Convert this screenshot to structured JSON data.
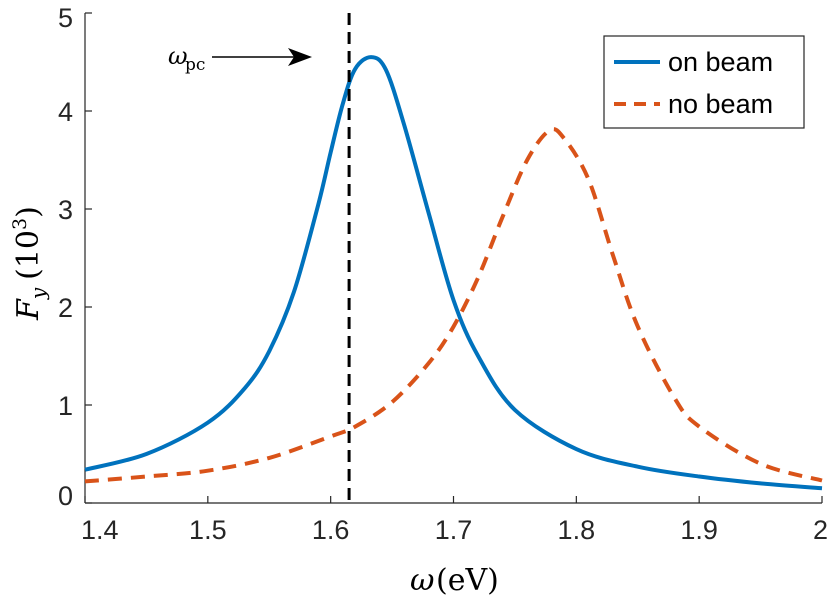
{
  "chart_data": {
    "type": "line",
    "title": "",
    "xlabel": {
      "symbol": "ω",
      "unit": "(eV)"
    },
    "ylabel": {
      "symbol": "F",
      "subscript": "y",
      "base": "(10",
      "exponent": "3",
      "close": ")"
    },
    "xlim": [
      1.4,
      2.0
    ],
    "ylim": [
      0,
      5
    ],
    "xticks": [
      "1.4",
      "1.5",
      "1.6",
      "1.7",
      "1.8",
      "1.9",
      "2"
    ],
    "xtick_values": [
      1.4,
      1.5,
      1.6,
      1.7,
      1.8,
      1.9,
      2.0
    ],
    "yticks": [
      "0",
      "1",
      "2",
      "3",
      "4",
      "5"
    ],
    "ytick_values": [
      0,
      1,
      2,
      3,
      4,
      5
    ],
    "legend_position": "top-right",
    "series": [
      {
        "name": "on beam",
        "style": "solid",
        "color": "#0072BD",
        "x": [
          1.4,
          1.45,
          1.5,
          1.53,
          1.55,
          1.57,
          1.59,
          1.6,
          1.61,
          1.62,
          1.633,
          1.645,
          1.66,
          1.68,
          1.7,
          1.72,
          1.75,
          1.8,
          1.85,
          1.9,
          1.95,
          2.0
        ],
        "y": [
          0.34,
          0.5,
          0.82,
          1.17,
          1.55,
          2.15,
          3.05,
          3.58,
          4.08,
          4.43,
          4.55,
          4.42,
          3.85,
          2.95,
          2.07,
          1.5,
          0.95,
          0.55,
          0.37,
          0.27,
          0.2,
          0.15
        ]
      },
      {
        "name": "no beam",
        "style": "dashed",
        "color": "#D95319",
        "x": [
          1.4,
          1.45,
          1.5,
          1.55,
          1.6,
          1.62,
          1.65,
          1.68,
          1.7,
          1.72,
          1.74,
          1.76,
          1.778,
          1.79,
          1.81,
          1.83,
          1.85,
          1.88,
          1.9,
          1.95,
          2.0
        ],
        "y": [
          0.22,
          0.27,
          0.33,
          0.46,
          0.68,
          0.78,
          1.03,
          1.43,
          1.8,
          2.3,
          2.92,
          3.5,
          3.8,
          3.72,
          3.3,
          2.52,
          1.8,
          1.07,
          0.78,
          0.4,
          0.23
        ]
      }
    ],
    "annotations": [
      {
        "type": "vline",
        "x": 1.615,
        "style": "dashed",
        "color": "#000000"
      },
      {
        "type": "arrow-label",
        "label_symbol": "ω",
        "label_subscript": "pc",
        "points_to_x": 1.615,
        "at_y": 4.55
      }
    ]
  }
}
